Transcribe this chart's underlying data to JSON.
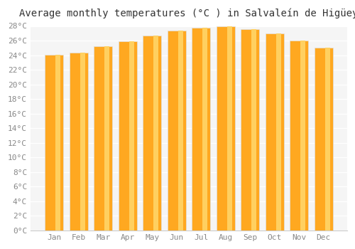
{
  "title": "Average monthly temperatures (°C ) in Salvaleín de Higüey",
  "months": [
    "Jan",
    "Feb",
    "Mar",
    "Apr",
    "May",
    "Jun",
    "Jul",
    "Aug",
    "Sep",
    "Oct",
    "Nov",
    "Dec"
  ],
  "temperatures": [
    24.1,
    24.3,
    25.2,
    25.9,
    26.7,
    27.4,
    27.8,
    28.0,
    27.6,
    27.0,
    26.0,
    25.0
  ],
  "bar_color_main": "#FFA820",
  "bar_color_light": "#FFD060",
  "ylim": [
    0,
    28
  ],
  "yticks": [
    0,
    2,
    4,
    6,
    8,
    10,
    12,
    14,
    16,
    18,
    20,
    22,
    24,
    26,
    28
  ],
  "ytick_labels": [
    "0°C",
    "2°C",
    "4°C",
    "6°C",
    "8°C",
    "10°C",
    "12°C",
    "14°C",
    "16°C",
    "18°C",
    "20°C",
    "22°C",
    "24°C",
    "26°C",
    "28°C"
  ],
  "bg_color": "#ffffff",
  "plot_bg_color": "#f5f5f5",
  "grid_color": "#ffffff",
  "title_fontsize": 10,
  "tick_fontsize": 8,
  "tick_color": "#888888",
  "bar_edge_color": "#e0e0e0",
  "bar_width": 0.75
}
